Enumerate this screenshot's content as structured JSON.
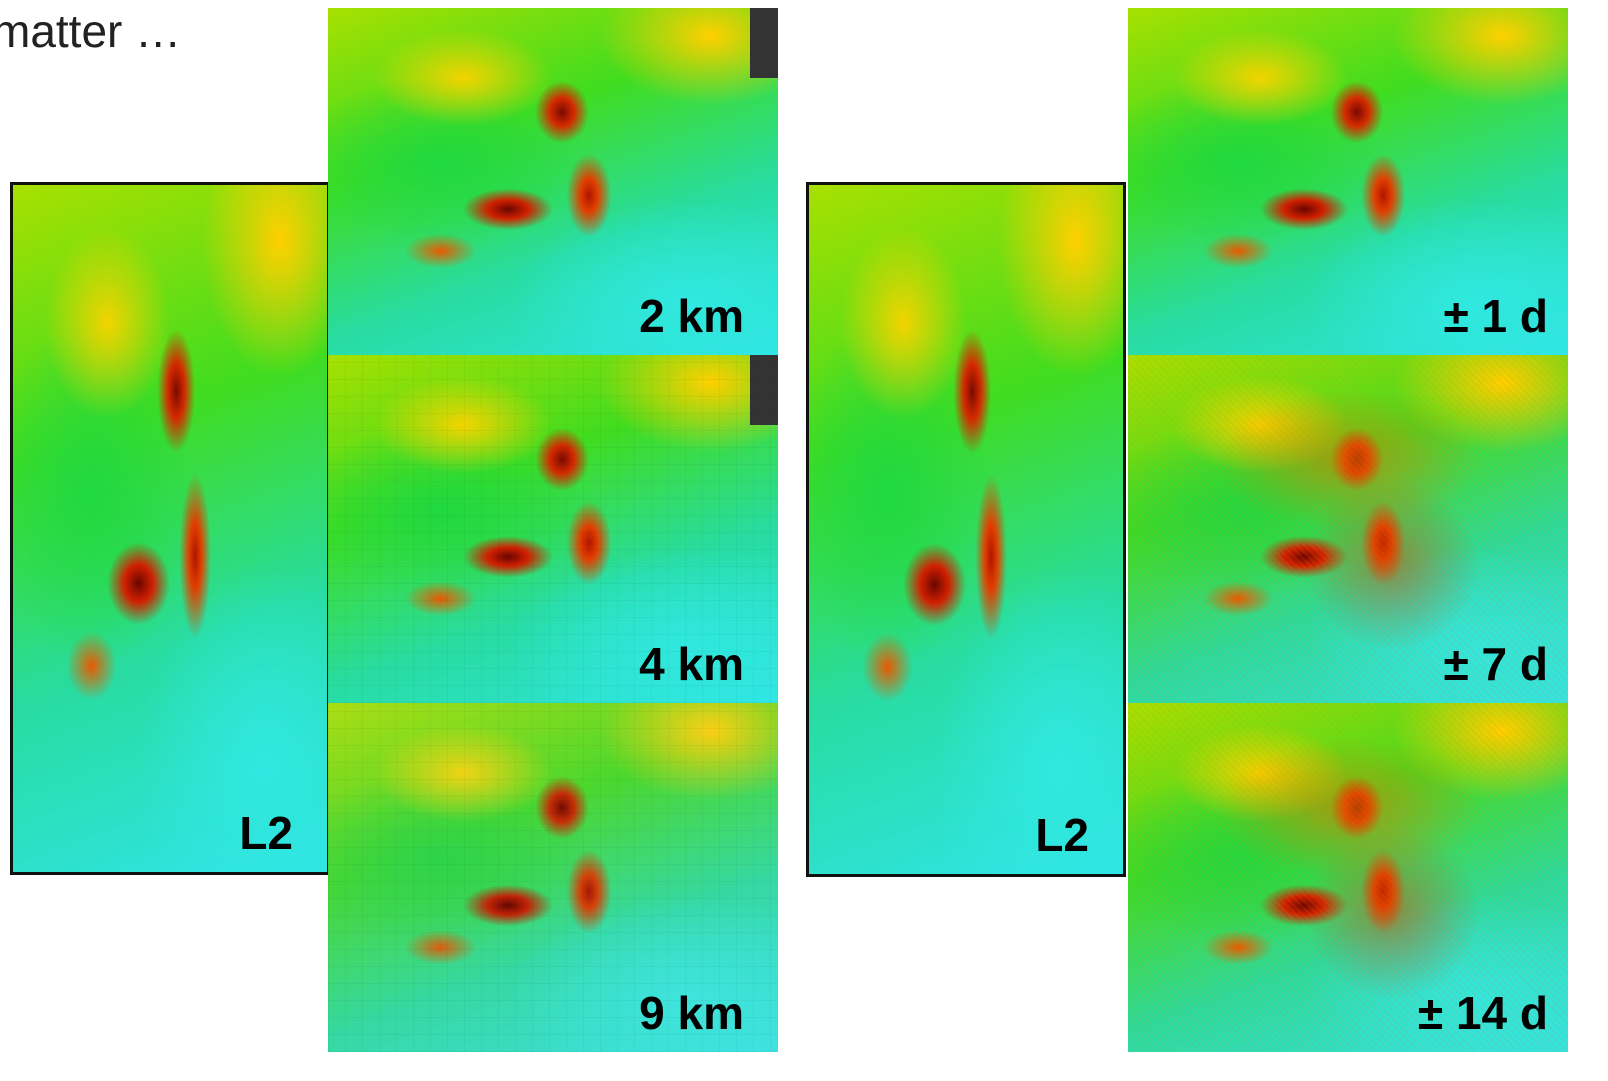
{
  "title": "matter …",
  "left_group": {
    "reference_label": "L2",
    "panels": [
      "2 km",
      "4 km",
      "9 km"
    ]
  },
  "right_group": {
    "reference_label": "L2",
    "panels": [
      "± 1 d",
      "± 7 d",
      "± 14 d"
    ]
  }
}
